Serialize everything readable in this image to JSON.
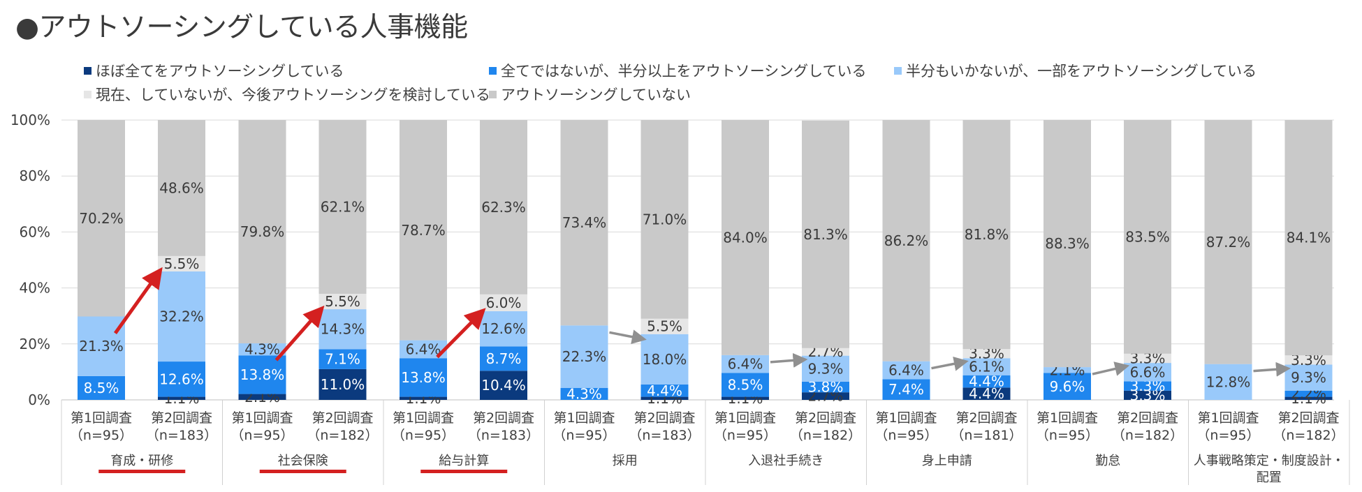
{
  "title": "●アウトソーシングしている人事機能",
  "chart_data": {
    "type": "bar",
    "stacked": true,
    "yaxis": {
      "ticks": [
        "0%",
        "20%",
        "40%",
        "60%",
        "80%",
        "100%"
      ],
      "ylim": [
        0,
        100
      ]
    },
    "grid": true,
    "legend_position": "top",
    "series": [
      {
        "name": "ほぼ全てをアウトソーシングしている",
        "color": "#0b3a7e"
      },
      {
        "name": "全てではないが、半分以上をアウトソーシングしている",
        "color": "#1f86ee"
      },
      {
        "name": "半分もいかないが、一部をアウトソーシングしている",
        "color": "#99c9fa"
      },
      {
        "name": "現在、していないが、今後アウトソーシングを検討している",
        "color": "#e6e6e6"
      },
      {
        "name": "アウトソーシングしていない",
        "color": "#c9c9c9"
      }
    ],
    "groups": [
      {
        "name": "育成・研修",
        "highlight": true,
        "bars": [
          {
            "label1": "第1回調査",
            "label2": "（n=95）",
            "values": [
              0,
              8.5,
              21.3,
              0,
              70.2
            ],
            "labels": [
              "",
              "8.5%",
              "21.3%",
              "",
              "70.2%"
            ]
          },
          {
            "label1": "第2回調査",
            "label2": "（n=183）",
            "values": [
              1.1,
              12.6,
              32.2,
              5.5,
              48.6
            ],
            "labels": [
              "1.1%",
              "12.6%",
              "32.2%",
              "5.5%",
              "48.6%"
            ]
          }
        ]
      },
      {
        "name": "社会保険",
        "highlight": true,
        "bars": [
          {
            "label1": "第1回調査",
            "label2": "（n=95）",
            "values": [
              2.1,
              13.8,
              4.3,
              0,
              79.8
            ],
            "labels": [
              "2.1%",
              "13.8%",
              "4.3%",
              "",
              "79.8%"
            ]
          },
          {
            "label1": "第2回調査",
            "label2": "（n=182）",
            "values": [
              11.0,
              7.1,
              14.3,
              5.5,
              62.1
            ],
            "labels": [
              "11.0%",
              "7.1%",
              "14.3%",
              "5.5%",
              "62.1%"
            ]
          }
        ]
      },
      {
        "name": "給与計算",
        "highlight": true,
        "bars": [
          {
            "label1": "第1回調査",
            "label2": "（n=95）",
            "values": [
              1.1,
              13.8,
              6.4,
              0,
              78.7
            ],
            "labels": [
              "1.1%",
              "13.8%",
              "6.4%",
              "",
              "78.7%"
            ]
          },
          {
            "label1": "第2回調査",
            "label2": "（n=183）",
            "values": [
              10.4,
              8.7,
              12.6,
              6.0,
              62.3
            ],
            "labels": [
              "10.4%",
              "8.7%",
              "12.6%",
              "6.0%",
              "62.3%"
            ]
          }
        ]
      },
      {
        "name": "採用",
        "highlight": false,
        "bars": [
          {
            "label1": "第1回調査",
            "label2": "（n=95）",
            "values": [
              0,
              4.3,
              22.3,
              0,
              73.4
            ],
            "labels": [
              "",
              "4.3%",
              "22.3%",
              "",
              "73.4%"
            ]
          },
          {
            "label1": "第2回調査",
            "label2": "（n=183）",
            "values": [
              1.1,
              4.4,
              18.0,
              5.5,
              71.0
            ],
            "labels": [
              "1.1%",
              "4.4%",
              "18.0%",
              "5.5%",
              "71.0%"
            ]
          }
        ]
      },
      {
        "name": "入退社手続き",
        "highlight": false,
        "bars": [
          {
            "label1": "第1回調査",
            "label2": "（n=95）",
            "values": [
              1.1,
              8.5,
              6.4,
              0,
              84.0
            ],
            "labels": [
              "1.1%",
              "8.5%",
              "6.4%",
              "",
              "84.0%"
            ]
          },
          {
            "label1": "第2回調査",
            "label2": "（n=182）",
            "values": [
              2.7,
              3.8,
              9.3,
              2.7,
              81.3
            ],
            "labels": [
              "2.7%",
              "3.8%",
              "9.3%",
              "2.7%",
              "81.3%"
            ]
          }
        ]
      },
      {
        "name": "身上申請",
        "highlight": false,
        "bars": [
          {
            "label1": "第1回調査",
            "label2": "（n=95）",
            "values": [
              0,
              7.4,
              6.4,
              0,
              86.2
            ],
            "labels": [
              "",
              "7.4%",
              "6.4%",
              "",
              "86.2%"
            ]
          },
          {
            "label1": "第2回調査",
            "label2": "（n=181）",
            "values": [
              4.4,
              4.4,
              6.1,
              3.3,
              81.8
            ],
            "labels": [
              "4.4%",
              "4.4%",
              "6.1%",
              "3.3%",
              "81.8%"
            ]
          }
        ]
      },
      {
        "name": "勤怠",
        "highlight": false,
        "bars": [
          {
            "label1": "第1回調査",
            "label2": "（n=95）",
            "values": [
              0,
              9.6,
              2.1,
              0,
              88.3
            ],
            "labels": [
              "",
              "9.6%",
              "2.1%",
              "",
              "88.3%"
            ]
          },
          {
            "label1": "第2回調査",
            "label2": "（n=182）",
            "values": [
              3.3,
              3.3,
              6.6,
              3.3,
              83.5
            ],
            "labels": [
              "3.3%",
              "3.3%",
              "6.6%",
              "3.3%",
              "83.5%"
            ]
          }
        ]
      },
      {
        "name": "人事戦略策定・制度設計・配置",
        "highlight": false,
        "bars": [
          {
            "label1": "第1回調査",
            "label2": "（n=95）",
            "values": [
              0,
              0,
              12.8,
              0,
              87.2
            ],
            "labels": [
              "",
              "",
              "12.8%",
              "",
              "87.2%"
            ]
          },
          {
            "label1": "第2回調査",
            "label2": "（n=182）",
            "values": [
              1.1,
              2.2,
              9.3,
              3.3,
              84.1
            ],
            "labels": [
              "1.1%",
              "2.2%",
              "9.3%",
              "3.3%",
              "84.1%"
            ]
          }
        ]
      }
    ],
    "trend_arrows": [
      {
        "group": 0,
        "color": "#d42020"
      },
      {
        "group": 1,
        "color": "#d42020"
      },
      {
        "group": 2,
        "color": "#d42020"
      },
      {
        "group": 3,
        "color": "#909090"
      },
      {
        "group": 4,
        "color": "#909090"
      },
      {
        "group": 5,
        "color": "#909090"
      },
      {
        "group": 6,
        "color": "#909090"
      },
      {
        "group": 7,
        "color": "#909090"
      }
    ]
  }
}
